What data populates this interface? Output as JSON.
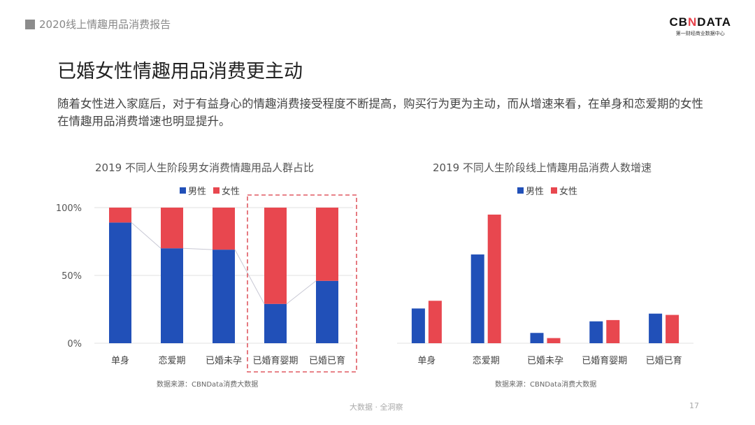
{
  "header": {
    "report_title": "2020线上情趣用品消费报告"
  },
  "logo": {
    "brand": "CBNDATA",
    "tagline": "第一财经商业数据中心"
  },
  "slide": {
    "title": "已婚女性情趣用品消费更主动",
    "description": "随着女性进入家庭后，对于有益身心的情趣消费接受程度不断提高，购买行为更为主动，而从增速来看，在单身和恋爱期的女性在情趣用品消费增速也明显提升。"
  },
  "footer": {
    "slogan": "大数据 · 全洞察",
    "page_number": "17"
  },
  "colors": {
    "male": "#2150b8",
    "female": "#e8474f",
    "highlight": "#e05a62"
  },
  "chart_data": [
    {
      "type": "bar",
      "stacked": true,
      "title": "2019 不同人生阶段男女消费情趣用品人群占比",
      "categories": [
        "单身",
        "恋爱期",
        "已婚未孕",
        "已婚育婴期",
        "已婚已育"
      ],
      "series": [
        {
          "name": "男性",
          "values": [
            89,
            70,
            69,
            29,
            46
          ]
        },
        {
          "name": "女性",
          "values": [
            11,
            30,
            31,
            71,
            54
          ]
        }
      ],
      "yticks": [
        "0%",
        "50%",
        "100%"
      ],
      "ylim": [
        0,
        100
      ],
      "legend": "top-center",
      "highlighted_categories": [
        "已婚育婴期",
        "已婚已育"
      ],
      "connector_line": true,
      "source": "数据来源：CBNData消费大数据"
    },
    {
      "type": "bar",
      "title": "2019 不同人生阶段线上情趣用品消费人数增速",
      "categories": [
        "单身",
        "恋爱期",
        "已婚未孕",
        "已婚育婴期",
        "已婚已育"
      ],
      "series": [
        {
          "name": "男性",
          "values": [
            27,
            69,
            8,
            17,
            23
          ]
        },
        {
          "name": "女性",
          "values": [
            33,
            100,
            4,
            18,
            22
          ]
        }
      ],
      "y_axis_shown": false,
      "legend": "top-center",
      "source": "数据来源：CBNData消费大数据"
    }
  ]
}
